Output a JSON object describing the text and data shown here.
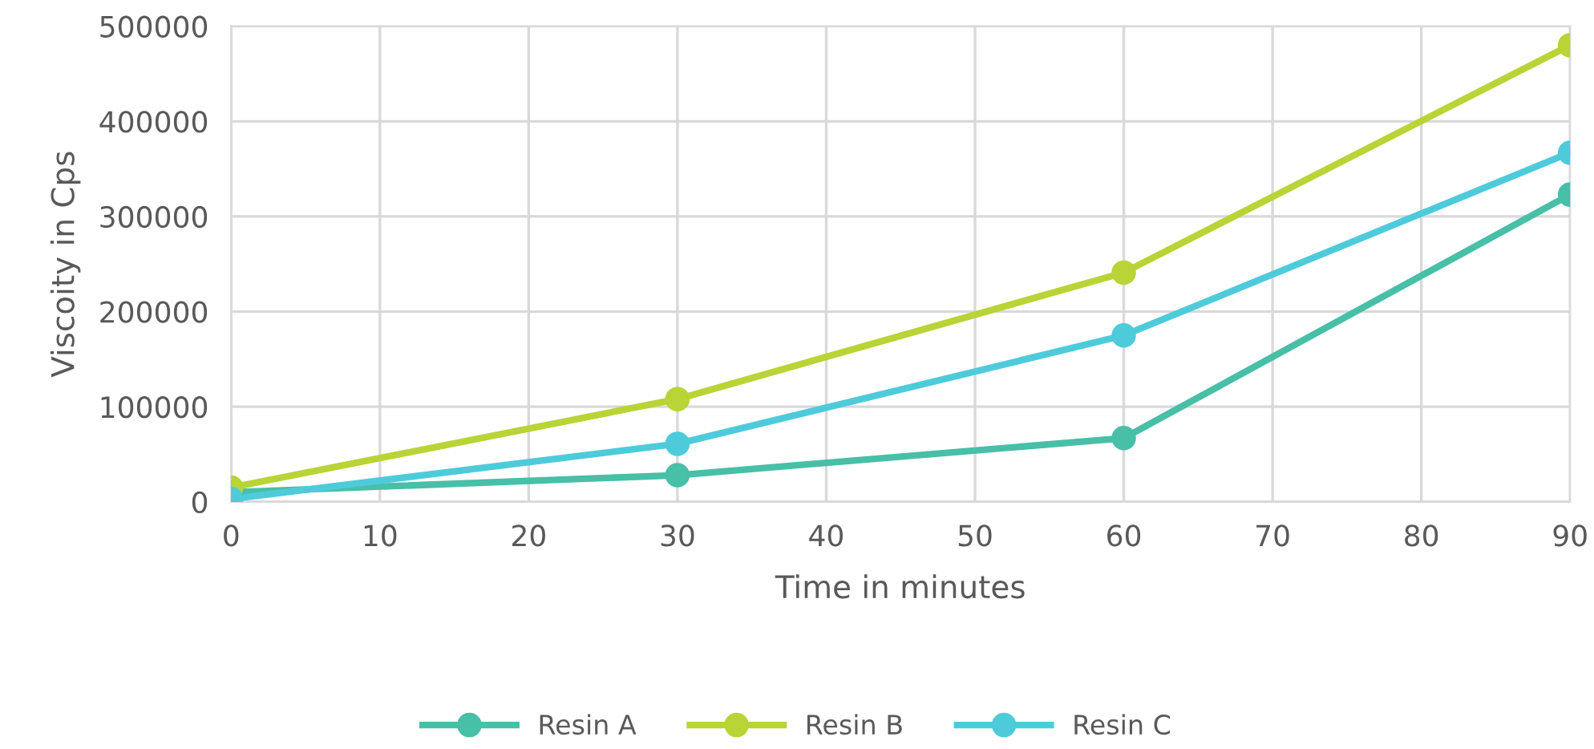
{
  "chart_data": {
    "type": "line",
    "xlabel": "Time in minutes",
    "ylabel": "Viscoity in Cps",
    "x": [
      0,
      30,
      60,
      90
    ],
    "series": [
      {
        "name": "Resin A",
        "color": "#48bfa7",
        "values": [
          10000,
          28000,
          67000,
          323000
        ]
      },
      {
        "name": "Resin B",
        "color": "#b8d436",
        "values": [
          15000,
          108000,
          241000,
          480000
        ]
      },
      {
        "name": "Resin C",
        "color": "#4ecbdb",
        "values": [
          3000,
          61000,
          175000,
          367000
        ]
      }
    ],
    "xlim": [
      0,
      90
    ],
    "xticks": [
      0,
      10,
      20,
      30,
      40,
      50,
      60,
      70,
      80,
      90
    ],
    "ylim": [
      0,
      500000
    ],
    "yticks": [
      0,
      100000,
      200000,
      300000,
      400000,
      500000
    ],
    "grid": true,
    "legend": "bottom",
    "marker": "circle",
    "line_style": "solid"
  }
}
